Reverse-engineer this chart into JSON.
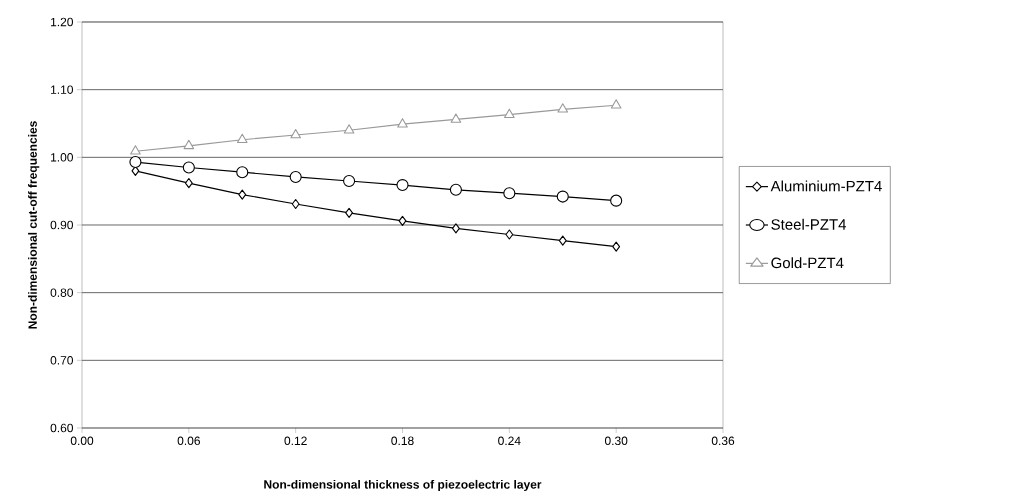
{
  "chart_data": {
    "type": "line",
    "xlabel": "Non-dimensional thickness of piezoelectric layer",
    "ylabel": "Non-dimensional cut-off frequencies",
    "x": [
      0.03,
      0.06,
      0.09,
      0.12,
      0.15,
      0.18,
      0.21,
      0.24,
      0.27,
      0.3
    ],
    "series": [
      {
        "name": "Aluminium-PZT4",
        "color": "#000000",
        "marker": "diamond",
        "values": [
          0.98,
          0.962,
          0.945,
          0.931,
          0.918,
          0.906,
          0.895,
          0.886,
          0.877,
          0.868
        ]
      },
      {
        "name": "Steel-PZT4",
        "color": "#000000",
        "marker": "circle",
        "values": [
          0.993,
          0.985,
          0.978,
          0.971,
          0.965,
          0.959,
          0.952,
          0.947,
          0.942,
          0.936
        ]
      },
      {
        "name": "Gold-PZT4",
        "color": "#999999",
        "marker": "triangle",
        "values": [
          1.009,
          1.017,
          1.026,
          1.033,
          1.04,
          1.049,
          1.056,
          1.063,
          1.071,
          1.077
        ]
      }
    ],
    "xlim": [
      0,
      0.36
    ],
    "ylim": [
      0.6,
      1.2
    ],
    "xticks": [
      {
        "value": 0,
        "label": "0.00"
      },
      {
        "value": 0.06,
        "label": "0.06"
      },
      {
        "value": 0.12,
        "label": "0.12"
      },
      {
        "value": 0.18,
        "label": "0.18"
      },
      {
        "value": 0.24,
        "label": "0.24"
      },
      {
        "value": 0.3,
        "label": "0.30"
      },
      {
        "value": 0.36,
        "label": "0.36"
      }
    ],
    "yticks": [
      {
        "value": 0.6,
        "label": "0.60"
      },
      {
        "value": 0.7,
        "label": "0.70"
      },
      {
        "value": 0.8,
        "label": "0.80"
      },
      {
        "value": 0.9,
        "label": "0.90"
      },
      {
        "value": 1.0,
        "label": "1.00"
      },
      {
        "value": 1.1,
        "label": "1.10"
      },
      {
        "value": 1.2,
        "label": "1.20"
      }
    ],
    "grid": "y",
    "legend": "right",
    "line_style": "solid"
  }
}
